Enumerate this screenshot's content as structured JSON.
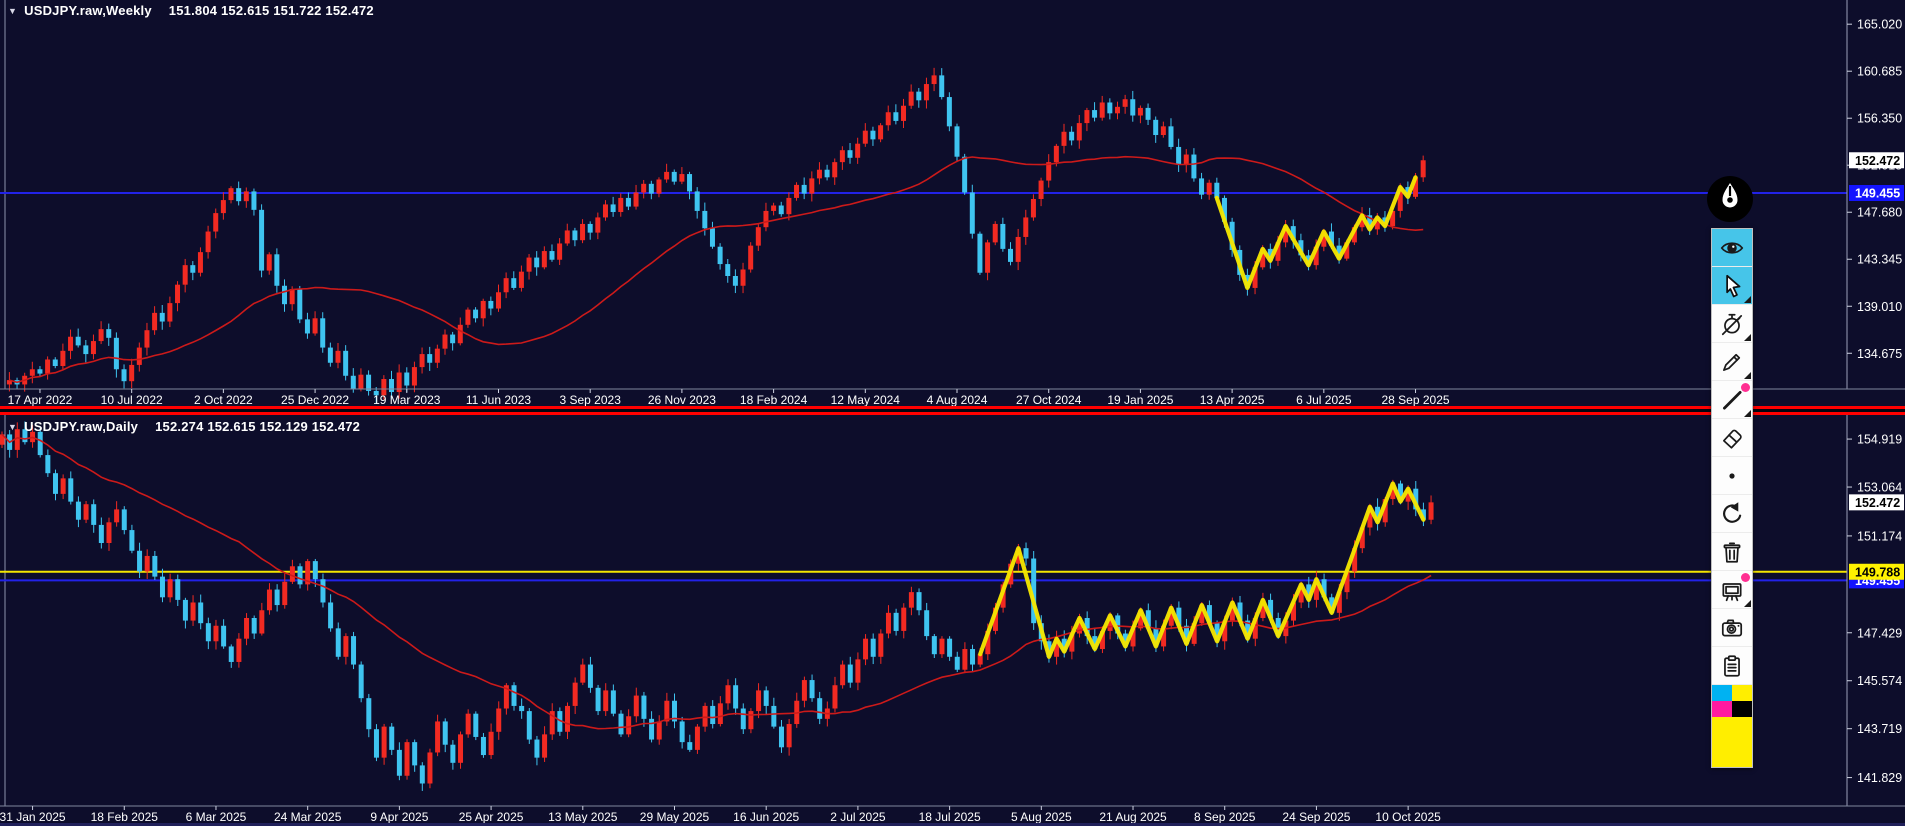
{
  "window": {
    "background": "#0d0d2b",
    "separator_color": "#ff0000"
  },
  "panes": [
    {
      "marker": "▼",
      "title": "USDJPY.raw,Weekly",
      "quote": "151.804 152.615 151.722 152.472"
    },
    {
      "marker": "▼",
      "title": "USDJPY.raw,Daily",
      "quote": "152.274 152.615 152.129 152.472"
    }
  ],
  "chart_data": [
    {
      "type": "candlestick",
      "symbol": "USDJPY.raw",
      "timeframe": "Weekly",
      "title": "USDJPY.raw,Weekly",
      "ohlc_quote": {
        "open": "151.804",
        "high": "152.615",
        "low": "151.722",
        "close": "152.472"
      },
      "current_price": "152.472",
      "ylim": [
        131.38,
        167.25
      ],
      "y_ticks": [
        "165.020",
        "160.685",
        "156.350",
        "152.015",
        "147.680",
        "143.345",
        "139.010",
        "134.675"
      ],
      "x_labels": [
        "17 Apr 2022",
        "10 Jul 2022",
        "2 Oct 2022",
        "25 Dec 2022",
        "19 Mar 2023",
        "11 Jun 2023",
        "3 Sep 2023",
        "26 Nov 2023",
        "18 Feb 2024",
        "12 May 2024",
        "4 Aug 2024",
        "27 Oct 2024",
        "19 Jan 2025",
        "13 Apr 2025",
        "6 Jul 2025",
        "28 Sep 2025"
      ],
      "lines": [
        {
          "price": 149.455,
          "tag": "149.455",
          "color": "#2222e8",
          "tag_bg": "#1414ff",
          "tag_fg": "#ffffff"
        }
      ],
      "closes": [
        132.2,
        131.8,
        132.6,
        133.2,
        132.8,
        134.1,
        133.5,
        134.9,
        136.2,
        135.4,
        134.6,
        135.8,
        136.9,
        136.1,
        133.2,
        132.1,
        133.6,
        135.2,
        136.8,
        138.4,
        137.6,
        139.3,
        141.0,
        142.8,
        142.1,
        144.0,
        145.9,
        147.6,
        148.8,
        149.9,
        148.7,
        149.6,
        147.9,
        142.3,
        143.8,
        140.9,
        139.2,
        140.6,
        137.8,
        136.5,
        137.9,
        135.2,
        133.8,
        134.9,
        132.6,
        131.4,
        132.7,
        131.2,
        130.8,
        132.3,
        131.1,
        132.9,
        131.7,
        133.4,
        134.6,
        133.8,
        135.1,
        136.4,
        135.6,
        137.3,
        138.7,
        137.9,
        139.5,
        138.8,
        140.3,
        141.6,
        140.7,
        142.2,
        143.5,
        142.6,
        144.1,
        143.3,
        144.8,
        146.0,
        145.1,
        146.6,
        145.8,
        147.2,
        148.4,
        147.7,
        149.0,
        148.2,
        149.5,
        150.3,
        149.4,
        150.7,
        151.4,
        150.5,
        151.2,
        149.6,
        147.8,
        146.2,
        144.5,
        142.9,
        141.8,
        140.9,
        142.4,
        144.6,
        146.3,
        147.8,
        148.3,
        147.5,
        149.0,
        150.2,
        149.4,
        150.8,
        151.6,
        150.9,
        152.3,
        153.4,
        152.7,
        154.0,
        155.2,
        154.4,
        155.7,
        156.9,
        156.1,
        157.5,
        158.8,
        158.0,
        159.5,
        160.3,
        158.3,
        155.6,
        152.8,
        149.5,
        145.7,
        142.1,
        144.9,
        146.6,
        144.3,
        143.1,
        145.4,
        147.2,
        148.9,
        150.6,
        152.3,
        153.8,
        155.1,
        154.3,
        155.9,
        157.1,
        156.4,
        157.8,
        156.8,
        157.4,
        158.1,
        156.6,
        157.3,
        156.2,
        154.8,
        155.6,
        153.7,
        152.1,
        153.0,
        150.8,
        149.3,
        150.4,
        149.0,
        146.8,
        144.2,
        141.9,
        140.7,
        142.6,
        144.3,
        143.2,
        144.9,
        146.4,
        145.1,
        143.7,
        142.8,
        144.5,
        145.9,
        144.6,
        143.4,
        144.9,
        146.3,
        147.4,
        146.1,
        147.2,
        146.4,
        147.8,
        150.0,
        149.1,
        150.9,
        152.472
      ],
      "ma_period": 30,
      "overlay": {
        "from": 158,
        "to": 184,
        "color": "#f5e600",
        "kind": "freehand-zigzag"
      },
      "colors": {
        "bull": "#f22a22",
        "bear": "#3fc4f0",
        "ma": "#cc1a1a"
      },
      "seed": 7
    },
    {
      "type": "candlestick",
      "symbol": "USDJPY.raw",
      "timeframe": "Daily",
      "title": "USDJPY.raw,Daily",
      "ohlc_quote": {
        "open": "152.274",
        "high": "152.615",
        "low": "152.129",
        "close": "152.472"
      },
      "current_price": "152.472",
      "ylim": [
        140.73,
        155.85
      ],
      "y_ticks": [
        "154.919",
        "153.064",
        "151.174",
        "147.429",
        "145.574",
        "143.719",
        "141.829"
      ],
      "x_labels": [
        "31 Jan 2025",
        "18 Feb 2025",
        "6 Mar 2025",
        "24 Mar 2025",
        "9 Apr 2025",
        "25 Apr 2025",
        "13 May 2025",
        "29 May 2025",
        "16 Jun 2025",
        "2 Jul 2025",
        "18 Jul 2025",
        "5 Aug 2025",
        "21 Aug 2025",
        "8 Sep 2025",
        "24 Sep 2025",
        "10 Oct 2025"
      ],
      "lines": [
        {
          "price": 149.455,
          "tag": "149.455",
          "color": "#2222e8",
          "tag_bg": "#1414ff",
          "tag_fg": "#ffffff"
        },
        {
          "price": 149.788,
          "tag": "149.788",
          "color": "#f5e600",
          "tag_bg": "#fff200",
          "tag_fg": "#000000"
        }
      ],
      "closes": [
        155.1,
        154.5,
        155.3,
        154.8,
        155.2,
        154.3,
        153.6,
        152.8,
        153.4,
        152.5,
        151.8,
        152.4,
        151.6,
        150.9,
        151.7,
        152.2,
        151.4,
        150.6,
        149.8,
        150.4,
        149.6,
        148.8,
        149.5,
        148.7,
        147.9,
        148.6,
        147.8,
        147.1,
        147.7,
        146.9,
        146.3,
        147.2,
        148.0,
        147.4,
        148.3,
        149.1,
        148.5,
        149.4,
        150.0,
        149.3,
        150.2,
        149.5,
        148.6,
        147.6,
        146.5,
        147.3,
        146.2,
        144.9,
        143.7,
        142.6,
        143.8,
        142.9,
        141.9,
        143.2,
        142.3,
        141.6,
        142.8,
        144.0,
        143.1,
        142.4,
        143.5,
        144.3,
        143.4,
        142.7,
        143.6,
        144.5,
        145.4,
        144.6,
        144.4,
        143.3,
        142.6,
        143.5,
        144.4,
        143.6,
        144.6,
        145.5,
        146.2,
        145.3,
        144.4,
        145.2,
        144.3,
        143.5,
        144.2,
        145.0,
        144.1,
        143.3,
        144.0,
        144.8,
        144.0,
        143.2,
        142.9,
        143.8,
        144.6,
        143.9,
        144.7,
        145.4,
        144.5,
        143.7,
        144.4,
        145.2,
        144.6,
        143.8,
        143.0,
        143.9,
        144.8,
        145.6,
        144.9,
        144.1,
        144.5,
        145.4,
        146.2,
        145.5,
        146.4,
        147.2,
        146.5,
        147.4,
        148.2,
        147.5,
        148.4,
        149.0,
        148.3,
        147.3,
        146.6,
        147.2,
        146.5,
        146.0,
        146.8,
        146.2,
        146.6,
        147.5,
        148.4,
        149.3,
        150.1,
        150.7,
        150.3,
        147.8,
        147.1,
        146.5,
        147.2,
        146.7,
        147.4,
        148.0,
        147.3,
        146.8,
        147.5,
        148.1,
        147.4,
        146.9,
        147.6,
        148.3,
        147.6,
        146.9,
        147.7,
        148.4,
        147.7,
        147.0,
        147.8,
        148.5,
        147.8,
        147.1,
        147.9,
        148.6,
        147.9,
        147.2,
        148.0,
        148.7,
        148.0,
        147.3,
        147.9,
        148.6,
        149.3,
        148.7,
        149.5,
        148.8,
        148.2,
        149.0,
        149.8,
        150.7,
        151.5,
        152.3,
        151.7,
        152.6,
        153.2,
        152.5,
        153.0,
        152.2,
        151.8,
        152.472
      ],
      "ma_period": 32,
      "overlay": {
        "from": 128,
        "to": 186,
        "color": "#f5e600",
        "kind": "freehand-zigzag"
      },
      "colors": {
        "bull": "#f22a22",
        "bear": "#3fc4f0",
        "ma": "#cc1a1a"
      },
      "seed": 3
    }
  ],
  "toolbar": {
    "buttons": [
      {
        "name": "eye",
        "active": true,
        "submenu": false,
        "dot": false
      },
      {
        "name": "cursor",
        "active": true,
        "submenu": true,
        "dot": false
      },
      {
        "name": "timer-off",
        "active": false,
        "submenu": true,
        "dot": false
      },
      {
        "name": "pencil",
        "active": false,
        "submenu": true,
        "dot": false
      },
      {
        "name": "line-tool",
        "active": false,
        "submenu": true,
        "dot": true
      },
      {
        "name": "eraser",
        "active": false,
        "submenu": false,
        "dot": false
      },
      {
        "name": "dot-size",
        "active": false,
        "submenu": false,
        "dot": false
      },
      {
        "name": "undo",
        "active": false,
        "submenu": false,
        "dot": false
      },
      {
        "name": "trash",
        "active": false,
        "submenu": false,
        "dot": false
      },
      {
        "name": "board",
        "active": false,
        "submenu": true,
        "dot": true
      },
      {
        "name": "camera",
        "active": false,
        "submenu": false,
        "dot": false
      },
      {
        "name": "clipboard",
        "active": false,
        "submenu": false,
        "dot": false
      }
    ],
    "palette": [
      "#00b2f2",
      "#ffee00",
      "#ff1aa0",
      "#000000"
    ],
    "current_color": "#ffee00",
    "active_bg": "#46c5e9"
  }
}
